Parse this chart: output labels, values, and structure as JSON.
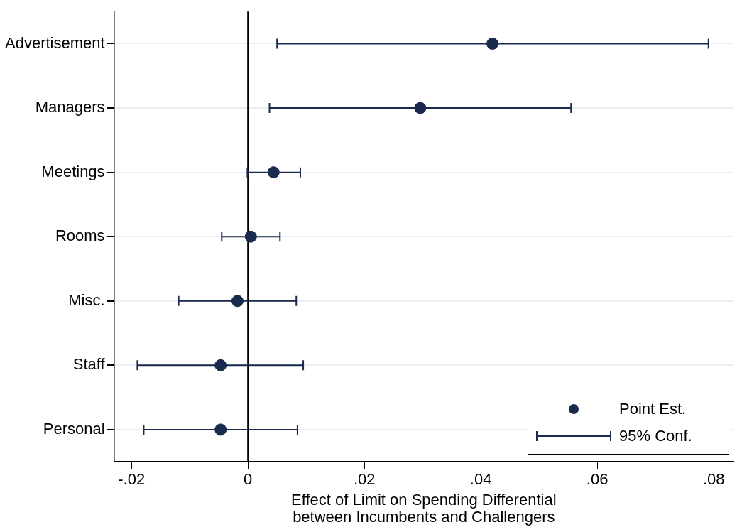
{
  "chart_data": {
    "type": "scatter",
    "orientation": "horizontal",
    "xlabel": "Effect of Limit on Spending Differential\nbetween Incumbents and Challengers",
    "categories": [
      "Advertisement",
      "Managers",
      "Meetings",
      "Rooms",
      "Misc.",
      "Staff",
      "Personal"
    ],
    "series": [
      {
        "name": "Point Est.",
        "color": "#1a2a4f",
        "values": [
          0.042,
          0.0296,
          0.0044,
          0.0005,
          -0.0018,
          -0.0047,
          -0.0047
        ],
        "errors": [
          [
            0.005,
            0.0791
          ],
          [
            0.0037,
            0.0555
          ],
          [
            -0.0001,
            0.009
          ],
          [
            -0.0045,
            0.0055
          ],
          [
            -0.0119,
            0.0083
          ],
          [
            -0.019,
            0.0095
          ],
          [
            -0.0179,
            0.0085
          ]
        ]
      }
    ],
    "annotations": [
      "95% Conf."
    ],
    "marker": "circle",
    "xlim": [
      -0.023,
      0.0834
    ],
    "xticks": [
      {
        "value": -0.02,
        "label": "-.02"
      },
      0,
      {
        "value": 0.02,
        "label": ".02"
      },
      {
        "value": 0.04,
        "label": ".04"
      },
      {
        "value": 0.06,
        "label": ".06"
      },
      {
        "value": 0.08,
        "label": ".08"
      }
    ],
    "ref_lines": [
      {
        "axis": "x",
        "value": 0,
        "color": "#000000"
      }
    ],
    "grid": "y",
    "legend": "bottom right"
  }
}
